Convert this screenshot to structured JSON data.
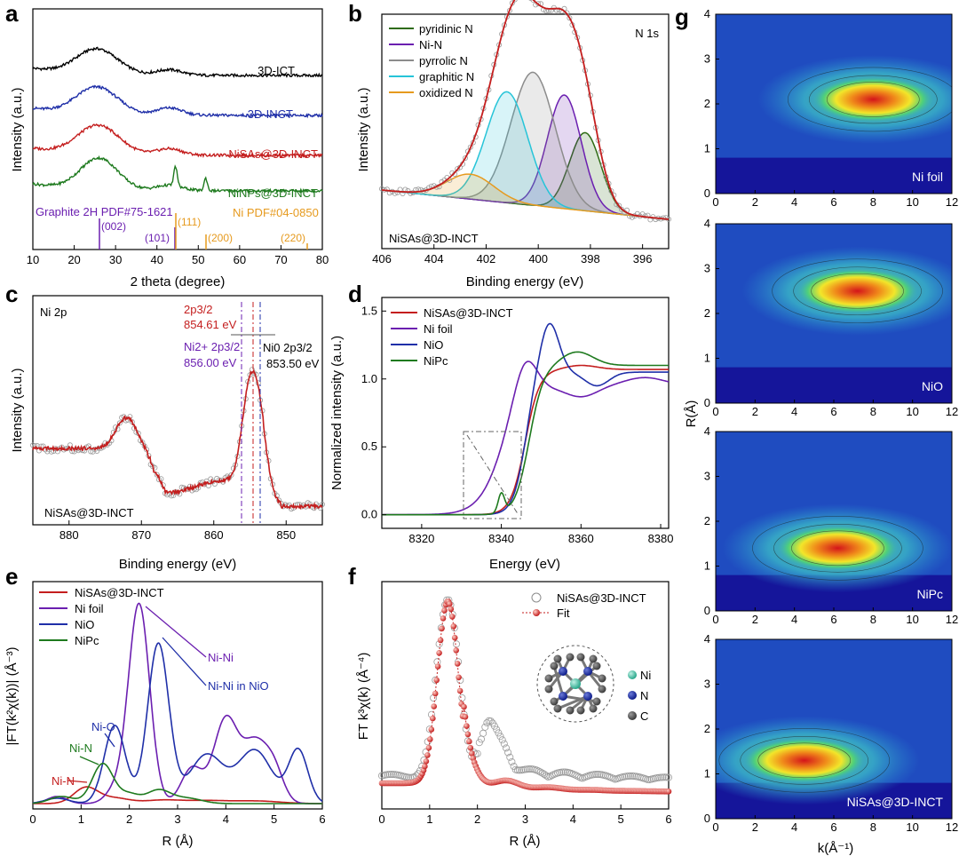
{
  "figure": {
    "colors": {
      "black": "#000000",
      "blue": "#1f2fa8",
      "red": "#c41e1e",
      "green": "#1e7a1e",
      "purple": "#6b1fb0",
      "orange": "#e69a1e",
      "gray": "#8c8c8c",
      "cyan": "#26c4d8",
      "darkgreen": "#2e6b14"
    }
  },
  "chart_data": [
    {
      "panel": "a",
      "type": "line",
      "title": "",
      "xlabel": "2 theta (degree)",
      "ylabel": "Intensity (a.u.)",
      "xlim": [
        10,
        80
      ],
      "xticks": [
        "10",
        "20",
        "30",
        "40",
        "50",
        "60",
        "70",
        "80"
      ],
      "series": [
        {
          "name": "3D-ICT",
          "color": "#000000"
        },
        {
          "name": "3D-INCT",
          "color": "#1f2fa8"
        },
        {
          "name": "NiSAs@3D-INCT",
          "color": "#c41e1e"
        },
        {
          "name": "NiNPs@3D-INCT",
          "color": "#1e7a1e"
        }
      ],
      "reference_lines": [
        {
          "label": "(002)",
          "x": 26.4,
          "color": "#6b1fb0"
        },
        {
          "label": "(101)",
          "x": 44.4,
          "color": "#6b1fb0"
        },
        {
          "label": "(111)",
          "x": 44.5,
          "color": "#e69a1e"
        },
        {
          "label": "(200)",
          "x": 51.8,
          "color": "#e69a1e"
        },
        {
          "label": "(220)",
          "x": 76.4,
          "color": "#e69a1e"
        }
      ],
      "annotations": {
        "graphite": "Graphite 2H PDF#75-1621",
        "ni": "Ni PDF#04-0850"
      }
    },
    {
      "panel": "b",
      "type": "line",
      "title": "N 1s",
      "xlabel": "Binding energy (eV)",
      "ylabel": "Intensity (a.u.)",
      "xlim": [
        406,
        395
      ],
      "xticks": [
        "406",
        "404",
        "402",
        "400",
        "398",
        "396"
      ],
      "series": [
        {
          "name": "pyridinic N",
          "center": 398.2,
          "color": "#2e6b14"
        },
        {
          "name": "Ni-N",
          "center": 399.0,
          "color": "#6b1fb0"
        },
        {
          "name": "pyrrolic N",
          "center": 400.2,
          "color": "#8c8c8c"
        },
        {
          "name": "graphitic N",
          "center": 401.2,
          "color": "#26c4d8"
        },
        {
          "name": "oxidized N",
          "center": 402.6,
          "color": "#e69a1e"
        }
      ],
      "sample": "NiSAs@3D-INCT"
    },
    {
      "panel": "c",
      "type": "line",
      "title": "Ni 2p",
      "xlabel": "Binding energy (eV)",
      "ylabel": "Intensity (a.u.)",
      "xlim": [
        885,
        845
      ],
      "xticks": [
        "880",
        "870",
        "860",
        "850"
      ],
      "peaks": [
        {
          "label": "2p3/2",
          "value": "854.61 eV",
          "color": "#c41e1e"
        },
        {
          "label": "Ni2+ 2p3/2",
          "value": "856.00 eV",
          "color": "#6b1fb0"
        },
        {
          "label": "Ni0 2p3/2",
          "value": "853.50 eV",
          "color": "#000000"
        }
      ],
      "sample": "NiSAs@3D-INCT"
    },
    {
      "panel": "d",
      "type": "line",
      "xlabel": "Energy (eV)",
      "ylabel": "Normalized intensity (a.u.)",
      "xlim": [
        8310,
        8382
      ],
      "ylim": [
        -0.1,
        1.6
      ],
      "xticks": [
        "8320",
        "8340",
        "8360",
        "8380"
      ],
      "yticks": [
        "0.0",
        "0.5",
        "1.0",
        "1.5"
      ],
      "series": [
        {
          "name": "NiSAs@3D-INCT",
          "color": "#c41e1e"
        },
        {
          "name": "Ni foil",
          "color": "#6b1fb0"
        },
        {
          "name": "NiO",
          "color": "#1f2fa8"
        },
        {
          "name": "NiPc",
          "color": "#1e7a1e"
        }
      ]
    },
    {
      "panel": "e",
      "type": "line",
      "xlabel": "R (Å)",
      "ylabel": "|FT(k²χ(k))| (Å⁻³)",
      "xlim": [
        0,
        6
      ],
      "xticks": [
        "0",
        "1",
        "2",
        "3",
        "4",
        "5",
        "6"
      ],
      "series": [
        {
          "name": "NiSAs@3D-INCT",
          "color": "#c41e1e"
        },
        {
          "name": "Ni foil",
          "color": "#6b1fb0"
        },
        {
          "name": "NiO",
          "color": "#1f2fa8"
        },
        {
          "name": "NiPc",
          "color": "#1e7a1e"
        }
      ],
      "annotations": [
        {
          "text": "Ni-Ni",
          "color": "#6b1fb0"
        },
        {
          "text": "Ni-Ni in NiO",
          "color": "#1f2fa8"
        },
        {
          "text": "Ni-O",
          "color": "#1f2fa8"
        },
        {
          "text": "Ni-N",
          "color": "#1e7a1e"
        },
        {
          "text": "Ni-N",
          "color": "#c41e1e"
        }
      ]
    },
    {
      "panel": "f",
      "type": "scatter",
      "xlabel": "R (Å)",
      "ylabel": "FT k³χ(k) (Å⁻⁴)",
      "xlim": [
        0,
        6
      ],
      "xticks": [
        "0",
        "1",
        "2",
        "3",
        "4",
        "5",
        "6"
      ],
      "series": [
        {
          "name": "NiSAs@3D-INCT",
          "marker": "open-circle",
          "color": "#8c8c8c"
        },
        {
          "name": "Fit",
          "marker": "red-ball",
          "color": "#c41e1e"
        }
      ],
      "legend_atoms": [
        "Ni",
        "N",
        "C"
      ]
    },
    {
      "panel": "g",
      "type": "heatmap",
      "xlabel": "k(Å⁻¹)",
      "ylabel": "R(Å)",
      "xlim": [
        0,
        12
      ],
      "ylim": [
        0,
        4
      ],
      "xticks": [
        "0",
        "2",
        "4",
        "6",
        "8",
        "10",
        "12"
      ],
      "yticks": [
        "0",
        "1",
        "2",
        "3",
        "4"
      ],
      "maps": [
        {
          "label": "Ni foil",
          "peak_k": 8.0,
          "peak_R": 2.1
        },
        {
          "label": "NiO",
          "peak_k": 7.2,
          "peak_R": 2.5
        },
        {
          "label": "NiPc",
          "peak_k": 6.2,
          "peak_R": 1.4
        },
        {
          "label": "NiSAs@3D-INCT",
          "peak_k": 4.5,
          "peak_R": 1.3
        }
      ]
    }
  ]
}
